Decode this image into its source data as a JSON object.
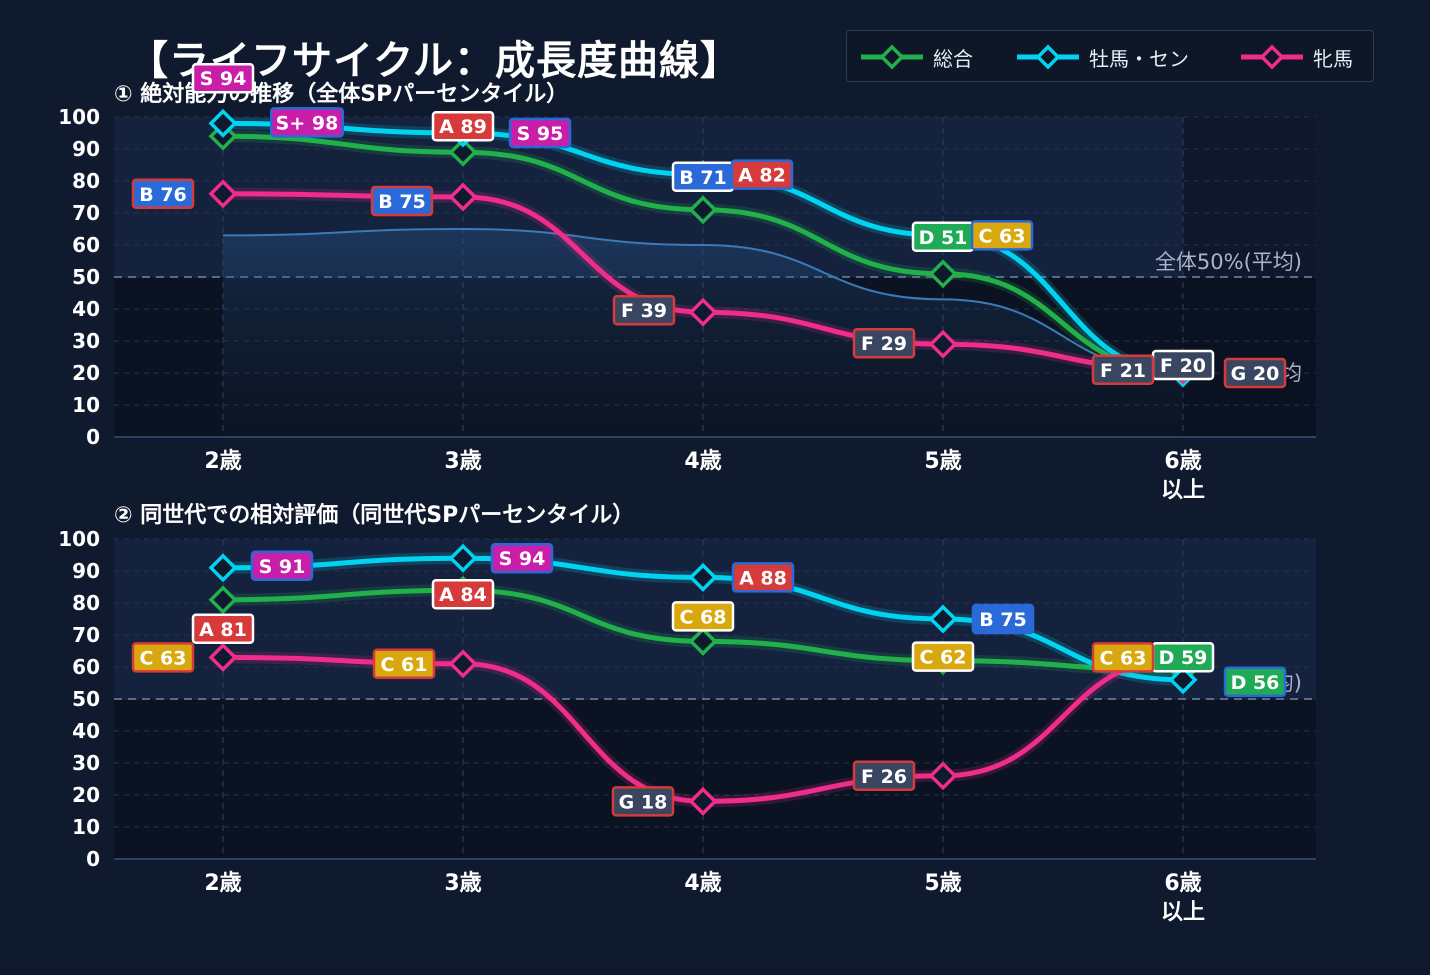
{
  "title": "【ライフサイクル：成長度曲線】",
  "legend": [
    {
      "name": "総合",
      "color": "#22b04b"
    },
    {
      "name": "牡馬・セン",
      "color": "#00d4f0"
    },
    {
      "name": "牝馬",
      "color": "#f02d8a"
    }
  ],
  "grade_colors": {
    "S+": "#c81ea8",
    "S": "#c81ea8",
    "A": "#d63a3a",
    "B": "#2a6ad8",
    "C": "#d8a80e",
    "D": "#1faa55",
    "F": "#3a4560",
    "G": "#3a4560"
  },
  "chart_data": [
    {
      "type": "line",
      "subtitle": "① 絶対能力の推移（全体SPパーセンタイル）",
      "categories": [
        "2歳",
        "3歳",
        "4歳",
        "5歳",
        "6歳\n以上"
      ],
      "ylim": [
        0,
        100
      ],
      "yticks": [
        0,
        10,
        20,
        30,
        40,
        50,
        60,
        70,
        80,
        90,
        100
      ],
      "grid": true,
      "reference": {
        "value": 50,
        "label": "全体50%(平均)"
      },
      "right_label_fragment": "均",
      "band": {
        "name": "",
        "values": [
          63,
          65,
          60,
          43,
          20
        ]
      },
      "series": [
        {
          "name": "総合",
          "values": [
            94,
            89,
            71,
            51,
            20
          ],
          "grades": [
            "S",
            "A",
            "B",
            "D",
            "F"
          ]
        },
        {
          "name": "牡馬・セン",
          "values": [
            98,
            95,
            82,
            63,
            20
          ],
          "grades": [
            "S+",
            "S",
            "A",
            "C",
            "G"
          ]
        },
        {
          "name": "牝馬",
          "values": [
            76,
            75,
            39,
            29,
            21
          ],
          "grades": [
            "B",
            "B",
            "F",
            "F",
            "F"
          ]
        }
      ]
    },
    {
      "type": "line",
      "subtitle": "② 同世代での相対評価（同世代SPパーセンタイル）",
      "categories": [
        "2歳",
        "3歳",
        "4歳",
        "5歳",
        "6歳\n以上"
      ],
      "ylim": [
        0,
        100
      ],
      "yticks": [
        0,
        10,
        20,
        30,
        40,
        50,
        60,
        70,
        80,
        90,
        100
      ],
      "grid": true,
      "reference": {
        "value": 50,
        "label": ""
      },
      "right_label_fragment": "均)",
      "series": [
        {
          "name": "総合",
          "values": [
            81,
            84,
            68,
            62,
            59
          ],
          "grades": [
            "A",
            "A",
            "C",
            "C",
            "D"
          ]
        },
        {
          "name": "牡馬・セン",
          "values": [
            91,
            94,
            88,
            75,
            56
          ],
          "grades": [
            "S",
            "S",
            "A",
            "B",
            "D"
          ]
        },
        {
          "name": "牝馬",
          "values": [
            63,
            61,
            18,
            26,
            63
          ],
          "grades": [
            "C",
            "C",
            "G",
            "F",
            "C"
          ]
        }
      ]
    }
  ]
}
